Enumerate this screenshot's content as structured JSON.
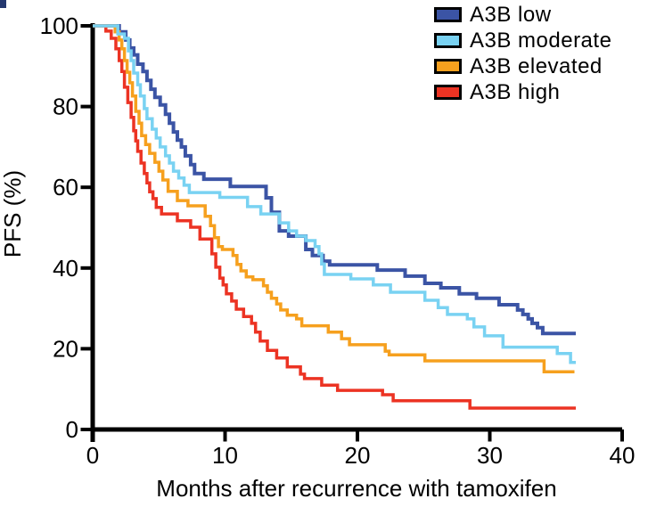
{
  "figure": {
    "y_axis_title": "PFS (%)",
    "x_axis_title": "Months after recurrence with tamoxifen"
  },
  "legend": {
    "position": "top-right",
    "items": [
      {
        "label": "A3B low",
        "color": "#3B54A5"
      },
      {
        "label": "A3B moderate",
        "color": "#79D2F2"
      },
      {
        "label": "A3B elevated",
        "color": "#F6A01E"
      },
      {
        "label": "A3B high",
        "color": "#EC3323"
      }
    ]
  },
  "chart_data": {
    "type": "line",
    "subtype": "kaplan-meier-step",
    "title": "",
    "xlabel": "Months after recurrence with tamoxifen",
    "ylabel": "PFS (%)",
    "xlim": [
      0,
      40
    ],
    "ylim": [
      0,
      100
    ],
    "x_ticks": [
      0,
      10,
      20,
      30,
      40
    ],
    "y_ticks": [
      0,
      20,
      40,
      60,
      80,
      100
    ],
    "grid": false,
    "legend_position": "top-right",
    "series": [
      {
        "name": "A3B low",
        "color": "#3B54A5",
        "points": [
          [
            0,
            100
          ],
          [
            2.0,
            98.5
          ],
          [
            2.5,
            96.5
          ],
          [
            2.8,
            94.5
          ],
          [
            3.1,
            92.8
          ],
          [
            3.4,
            90.5
          ],
          [
            3.8,
            88.7
          ],
          [
            4.1,
            86.5
          ],
          [
            4.4,
            84.3
          ],
          [
            4.7,
            82.3
          ],
          [
            5.1,
            80.4
          ],
          [
            5.5,
            78.1
          ],
          [
            5.8,
            75.9
          ],
          [
            6.1,
            73.7
          ],
          [
            6.4,
            71.7
          ],
          [
            6.7,
            70.0
          ],
          [
            7.0,
            67.8
          ],
          [
            7.4,
            65.6
          ],
          [
            7.7,
            63.4
          ],
          [
            8.4,
            62.0
          ],
          [
            10.4,
            60.2
          ],
          [
            13.1,
            57.4
          ],
          [
            13.5,
            53.8
          ],
          [
            14.1,
            49.2
          ],
          [
            14.8,
            47.9
          ],
          [
            16.1,
            44.6
          ],
          [
            16.6,
            43.1
          ],
          [
            17.4,
            41.7
          ],
          [
            17.9,
            40.8
          ],
          [
            21.5,
            39.5
          ],
          [
            23.6,
            38.0
          ],
          [
            25.1,
            36.2
          ],
          [
            26.3,
            35.1
          ],
          [
            27.7,
            33.6
          ],
          [
            29.0,
            32.5
          ],
          [
            30.7,
            30.9
          ],
          [
            32.1,
            29.6
          ],
          [
            32.5,
            28.5
          ],
          [
            32.9,
            27.4
          ],
          [
            33.2,
            26.3
          ],
          [
            33.6,
            25.2
          ],
          [
            34.0,
            23.8
          ],
          [
            36.5,
            23.8
          ]
        ]
      },
      {
        "name": "A3B moderate",
        "color": "#79D2F2",
        "points": [
          [
            0,
            100
          ],
          [
            1.9,
            98.0
          ],
          [
            2.4,
            96.9
          ],
          [
            2.7,
            93.8
          ],
          [
            2.9,
            91.4
          ],
          [
            3.1,
            88.3
          ],
          [
            3.4,
            85.4
          ],
          [
            3.6,
            82.6
          ],
          [
            3.9,
            79.5
          ],
          [
            4.1,
            77.0
          ],
          [
            4.5,
            74.4
          ],
          [
            4.8,
            72.2
          ],
          [
            5.1,
            70.0
          ],
          [
            5.5,
            67.8
          ],
          [
            5.8,
            66.0
          ],
          [
            6.1,
            64.0
          ],
          [
            6.5,
            62.3
          ],
          [
            6.9,
            60.5
          ],
          [
            7.3,
            58.7
          ],
          [
            9.6,
            57.5
          ],
          [
            11.7,
            55.2
          ],
          [
            12.7,
            53.4
          ],
          [
            14.1,
            51.2
          ],
          [
            14.8,
            49.2
          ],
          [
            15.4,
            47.9
          ],
          [
            16.1,
            46.8
          ],
          [
            16.8,
            45.3
          ],
          [
            17.1,
            43.5
          ],
          [
            17.3,
            41.0
          ],
          [
            17.5,
            38.4
          ],
          [
            19.5,
            37.3
          ],
          [
            21.2,
            35.8
          ],
          [
            22.5,
            34.0
          ],
          [
            25.1,
            32.0
          ],
          [
            26.1,
            30.2
          ],
          [
            26.8,
            28.5
          ],
          [
            28.3,
            27.4
          ],
          [
            28.8,
            25.4
          ],
          [
            29.6,
            23.2
          ],
          [
            31.0,
            20.4
          ],
          [
            35.1,
            18.8
          ],
          [
            36.1,
            16.6
          ],
          [
            36.5,
            16.6
          ]
        ]
      },
      {
        "name": "A3B elevated",
        "color": "#F6A01E",
        "points": [
          [
            0,
            100
          ],
          [
            1.7,
            98.5
          ],
          [
            2.0,
            96.5
          ],
          [
            2.2,
            94.3
          ],
          [
            2.4,
            91.4
          ],
          [
            2.6,
            88.5
          ],
          [
            2.8,
            85.9
          ],
          [
            3.0,
            82.6
          ],
          [
            3.25,
            78.8
          ],
          [
            3.5,
            75.9
          ],
          [
            3.7,
            72.8
          ],
          [
            4.0,
            70.6
          ],
          [
            4.3,
            68.4
          ],
          [
            4.7,
            66.2
          ],
          [
            5.0,
            64.0
          ],
          [
            5.3,
            61.8
          ],
          [
            5.7,
            59.0
          ],
          [
            6.4,
            56.7
          ],
          [
            7.2,
            55.4
          ],
          [
            8.5,
            52.8
          ],
          [
            8.9,
            50.5
          ],
          [
            9.2,
            47.5
          ],
          [
            9.5,
            45.3
          ],
          [
            9.8,
            44.6
          ],
          [
            10.6,
            43.1
          ],
          [
            10.9,
            40.9
          ],
          [
            11.2,
            39.3
          ],
          [
            11.6,
            37.8
          ],
          [
            12.1,
            37.1
          ],
          [
            12.9,
            35.6
          ],
          [
            13.2,
            34.0
          ],
          [
            13.5,
            32.5
          ],
          [
            13.9,
            31.1
          ],
          [
            14.2,
            29.6
          ],
          [
            14.7,
            28.3
          ],
          [
            15.4,
            27.4
          ],
          [
            15.8,
            25.7
          ],
          [
            17.8,
            24.1
          ],
          [
            18.8,
            22.5
          ],
          [
            19.4,
            21.0
          ],
          [
            22.1,
            19.4
          ],
          [
            22.4,
            18.5
          ],
          [
            25.1,
            17.0
          ],
          [
            34.1,
            14.3
          ],
          [
            36.4,
            14.3
          ]
        ]
      },
      {
        "name": "A3B high",
        "color": "#EC3323",
        "points": [
          [
            0,
            100
          ],
          [
            1.0,
            98.7
          ],
          [
            1.4,
            96.9
          ],
          [
            1.75,
            94.3
          ],
          [
            2.0,
            91.4
          ],
          [
            2.2,
            88.7
          ],
          [
            2.4,
            84.8
          ],
          [
            2.65,
            81.0
          ],
          [
            2.9,
            77.3
          ],
          [
            3.1,
            74.0
          ],
          [
            3.25,
            71.5
          ],
          [
            3.4,
            68.9
          ],
          [
            3.65,
            66.0
          ],
          [
            3.9,
            63.4
          ],
          [
            4.1,
            61.1
          ],
          [
            4.3,
            58.9
          ],
          [
            4.55,
            57.2
          ],
          [
            4.8,
            55.0
          ],
          [
            5.2,
            53.4
          ],
          [
            6.4,
            51.7
          ],
          [
            7.4,
            50.1
          ],
          [
            8.1,
            47.2
          ],
          [
            9.0,
            43.5
          ],
          [
            9.3,
            40.2
          ],
          [
            9.6,
            37.5
          ],
          [
            9.85,
            35.8
          ],
          [
            10.1,
            33.6
          ],
          [
            10.5,
            31.8
          ],
          [
            10.85,
            29.8
          ],
          [
            11.4,
            28.0
          ],
          [
            12.0,
            26.3
          ],
          [
            12.3,
            24.1
          ],
          [
            12.65,
            21.9
          ],
          [
            13.2,
            19.6
          ],
          [
            13.9,
            17.7
          ],
          [
            14.7,
            15.5
          ],
          [
            15.7,
            13.7
          ],
          [
            16.0,
            12.6
          ],
          [
            17.3,
            11.0
          ],
          [
            18.5,
            9.7
          ],
          [
            21.9,
            8.6
          ],
          [
            22.7,
            7.1
          ],
          [
            28.5,
            5.3
          ],
          [
            36.5,
            5.3
          ]
        ]
      }
    ]
  }
}
